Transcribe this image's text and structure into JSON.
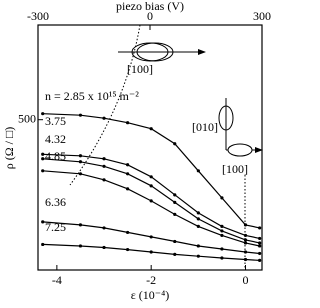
{
  "chart_data": {
    "type": "line",
    "x_label": "ε (10⁻⁴)",
    "y_label": "ρ (Ω / □)",
    "top_label": "piezo bias (V)",
    "x": [
      -4.3,
      -3.5,
      -3,
      -2.5,
      -2,
      -1.5,
      -1,
      -0.5,
      0,
      0.3
    ],
    "xlim": [
      -4.4,
      0.35
    ],
    "xticks": [
      -4,
      -2,
      0
    ],
    "top_xlim": [
      -300,
      300
    ],
    "top_xticks": [
      -300,
      0,
      300
    ],
    "ylim": [
      0,
      815
    ],
    "yticks": [
      500
    ],
    "series": [
      {
        "name": "n = 2.85 x 10¹⁵ m⁻²",
        "color": "#000000",
        "values": [
          520,
          515,
          505,
          490,
          470,
          420,
          330,
          240,
          150,
          140
        ]
      },
      {
        "name": "3.75",
        "color": "#000000",
        "values": [
          385,
          380,
          370,
          350,
          310,
          250,
          190,
          145,
          115,
          105
        ]
      },
      {
        "name": "4.32",
        "color": "#000000",
        "values": [
          370,
          360,
          345,
          320,
          280,
          225,
          170,
          130,
          100,
          90
        ]
      },
      {
        "name": "4.85",
        "color": "#000000",
        "values": [
          330,
          320,
          300,
          270,
          230,
          185,
          145,
          115,
          90,
          80
        ]
      },
      {
        "name": "6.36",
        "color": "#000000",
        "values": [
          160,
          150,
          140,
          125,
          110,
          95,
          80,
          70,
          60,
          55
        ]
      },
      {
        "name": "7.25",
        "color": "#000000",
        "values": [
          85,
          80,
          75,
          68,
          60,
          52,
          46,
          40,
          35,
          32
        ]
      }
    ],
    "annotations": [
      "[100]",
      "[010]",
      "[100]"
    ]
  }
}
